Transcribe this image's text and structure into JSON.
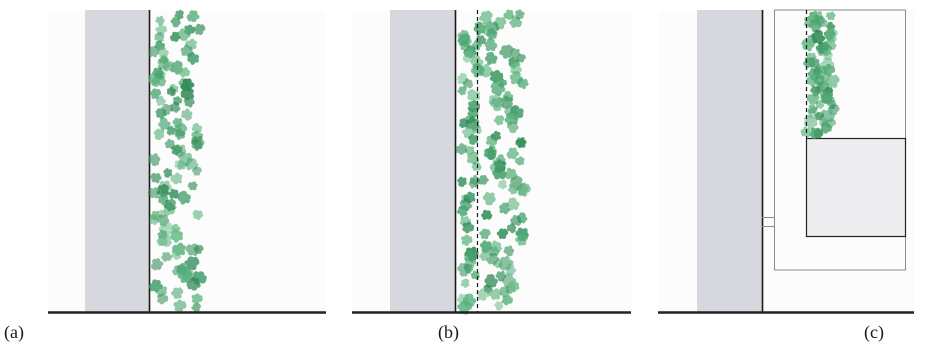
{
  "figure": {
    "panels": [
      {
        "id": "a",
        "label": "(a)"
      },
      {
        "id": "b",
        "label": "(b)"
      },
      {
        "id": "c",
        "label": "(c)"
      }
    ],
    "colors": {
      "wall": "#d6d8de",
      "panel_background": "#fcfcfc",
      "ground": "#222222",
      "wall_line": "#1a1a1a",
      "foliage": [
        "#3f9b66",
        "#58b07c",
        "#2e8a55",
        "#6dbd8a",
        "#4aa571"
      ],
      "box_fill": "#ededf0",
      "box_stroke": "#222222",
      "frame_stroke": "#8a8a8a"
    }
  }
}
